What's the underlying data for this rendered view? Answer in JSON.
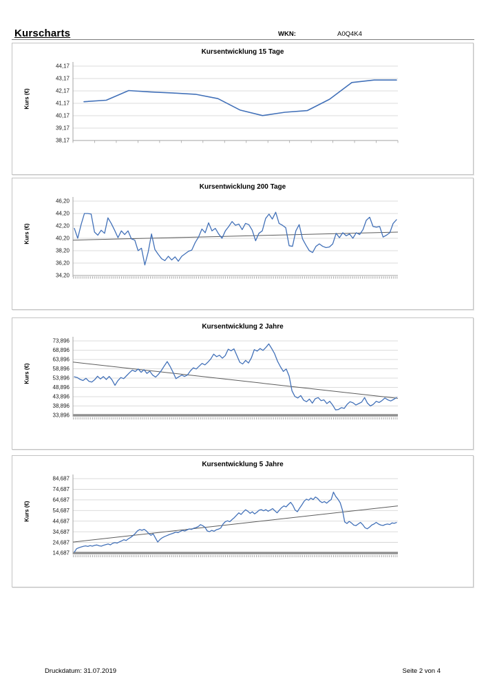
{
  "page": {
    "title": "Kurscharts",
    "wkn_label": "WKN:",
    "wkn_value": "A0Q4K4",
    "footer_left": "Druckdatum: 31.07.2019",
    "footer_right": "Seite 2 von 4"
  },
  "colors": {
    "series": "#4170b8",
    "trend": "#5a5a5a",
    "grid": "#cfcfcf",
    "axis": "#a3a3a3",
    "thick_baseline": "#8f8f8f",
    "tick_text": "#1a1a1a"
  },
  "chart_data": [
    {
      "type": "line",
      "title": "Kursentwicklung 15 Tage",
      "ylabel": "Kurs (€)",
      "y_ticks": [
        "44,17",
        "43,17",
        "42,17",
        "41,17",
        "40,17",
        "39,17",
        "38,17"
      ],
      "ylim": [
        38.17,
        44.17
      ],
      "grid": true,
      "legend": "none",
      "x_tick_style": "sparse",
      "thick_baseline": false,
      "trend": null,
      "values": [
        41.3,
        41.42,
        42.2,
        42.08,
        42.0,
        41.9,
        41.55,
        40.62,
        40.18,
        40.45,
        40.58,
        41.5,
        42.85,
        43.05,
        43.05
      ]
    },
    {
      "type": "line",
      "title": "Kursentwicklung 200 Tage",
      "ylabel": "Kurs (€)",
      "y_ticks": [
        "46,20",
        "44,20",
        "42,20",
        "40,20",
        "38,20",
        "36,20",
        "34,20"
      ],
      "ylim": [
        34.2,
        46.2
      ],
      "grid": true,
      "legend": "none",
      "x_tick_style": "dense",
      "thick_baseline": false,
      "trend": [
        39.9,
        41.2
      ],
      "values": [
        41.8,
        40.2,
        42.4,
        44.2,
        44.2,
        44.1,
        41.2,
        40.7,
        41.5,
        41.0,
        43.5,
        42.6,
        41.5,
        40.3,
        41.4,
        40.8,
        41.4,
        40.1,
        39.9,
        38.2,
        38.6,
        35.9,
        38.0,
        40.9,
        38.4,
        37.6,
        36.9,
        36.6,
        37.3,
        36.7,
        37.2,
        36.5,
        37.3,
        37.7,
        38.1,
        38.3,
        39.5,
        40.4,
        41.7,
        41.1,
        42.7,
        41.4,
        41.8,
        40.9,
        40.2,
        41.4,
        42.1,
        42.9,
        42.3,
        42.5,
        41.6,
        42.6,
        42.4,
        41.5,
        39.8,
        41.0,
        41.4,
        43.4,
        44.1,
        43.3,
        44.4,
        42.6,
        42.3,
        41.9,
        39.0,
        38.9,
        41.4,
        42.4,
        40.1,
        39.1,
        38.2,
        37.9,
        38.9,
        39.3,
        38.9,
        38.7,
        38.8,
        39.3,
        41.0,
        40.3,
        41.1,
        40.6,
        40.9,
        40.2,
        41.1,
        40.8,
        41.6,
        43.1,
        43.6,
        42.1,
        42.0,
        42.1,
        40.4,
        40.7,
        41.1,
        42.6,
        43.2
      ]
    },
    {
      "type": "line",
      "title": "Kursentwicklung 2 Jahre",
      "ylabel": "Kurs (€)",
      "y_ticks": [
        "73,896",
        "68,896",
        "63,896",
        "58,896",
        "53,896",
        "48,896",
        "43,896",
        "38,896",
        "33,896"
      ],
      "ylim": [
        33.896,
        73.896
      ],
      "grid": true,
      "legend": "none",
      "x_tick_style": "dense",
      "thick_baseline": true,
      "trend": [
        62.5,
        43.0
      ],
      "values": [
        54.6,
        54.2,
        53.2,
        52.6,
        53.8,
        52.2,
        51.8,
        53.0,
        54.9,
        53.4,
        54.7,
        53.1,
        54.8,
        52.9,
        50.0,
        52.5,
        54.2,
        53.6,
        55.2,
        56.8,
        58.2,
        57.4,
        58.8,
        57.0,
        58.4,
        56.4,
        57.6,
        55.5,
        54.4,
        56.0,
        58.0,
        60.5,
        62.8,
        60.2,
        57.0,
        53.6,
        54.6,
        55.5,
        54.8,
        55.6,
        57.8,
        59.4,
        58.8,
        60.3,
        61.8,
        61.0,
        62.4,
        64.2,
        66.8,
        65.4,
        66.2,
        64.6,
        66.0,
        69.4,
        68.6,
        69.6,
        66.0,
        62.4,
        61.5,
        63.4,
        62.0,
        64.8,
        69.2,
        68.4,
        69.8,
        68.8,
        70.4,
        72.3,
        69.8,
        67.0,
        63.0,
        60.0,
        57.5,
        58.8,
        55.0,
        47.0,
        44.0,
        43.2,
        44.5,
        42.0,
        41.2,
        42.6,
        40.4,
        42.8,
        43.4,
        41.8,
        42.2,
        40.2,
        41.4,
        39.4,
        36.8,
        37.0,
        38.0,
        37.6,
        39.8,
        41.2,
        40.6,
        39.4,
        40.2,
        41.0,
        43.4,
        40.4,
        38.9,
        39.8,
        41.4,
        40.8,
        41.8,
        43.2,
        42.2,
        41.6,
        42.4,
        43.4
      ]
    },
    {
      "type": "line",
      "title": "Kursentwicklung 5 Jahre",
      "ylabel": "Kurs (€)",
      "y_ticks": [
        "84,687",
        "74,687",
        "64,687",
        "54,687",
        "44,687",
        "34,687",
        "24,687",
        "14,687"
      ],
      "ylim": [
        14.687,
        84.687
      ],
      "grid": true,
      "legend": "none",
      "x_tick_style": "dense",
      "thick_baseline": true,
      "trend": [
        25.0,
        59.0
      ],
      "values": [
        15.5,
        18.8,
        19.6,
        20.4,
        21.0,
        21.4,
        20.9,
        21.6,
        21.2,
        21.9,
        22.3,
        21.5,
        21.2,
        22.0,
        22.6,
        23.2,
        22.4,
        23.8,
        24.5,
        24.0,
        25.2,
        26.1,
        27.2,
        26.5,
        28.1,
        29.4,
        31.0,
        33.0,
        35.5,
        36.8,
        36.1,
        37.0,
        35.4,
        33.0,
        31.4,
        32.7,
        28.8,
        25.0,
        27.4,
        29.0,
        30.1,
        31.0,
        31.9,
        32.7,
        33.4,
        34.4,
        33.9,
        35.0,
        36.0,
        35.4,
        36.4,
        37.4,
        36.9,
        38.0,
        38.6,
        39.6,
        41.4,
        40.4,
        38.9,
        35.4,
        34.8,
        36.0,
        35.2,
        36.5,
        37.2,
        38.2,
        42.0,
        44.2,
        45.0,
        44.2,
        46.2,
        48.0,
        50.2,
        52.5,
        51.0,
        53.4,
        55.4,
        54.0,
        52.1,
        53.5,
        51.5,
        53.0,
        55.0,
        55.5,
        54.4,
        55.5,
        54.0,
        55.1,
        56.5,
        54.4,
        52.5,
        55.0,
        57.4,
        59.0,
        58.1,
        60.4,
        62.4,
        59.5,
        55.1,
        53.6,
        57.0,
        60.0,
        63.4,
        65.4,
        64.4,
        66.4,
        65.0,
        67.4,
        66.0,
        63.5,
        62.1,
        63.1,
        61.6,
        63.5,
        65.0,
        72.0,
        68.0,
        65.4,
        62.0,
        55.0,
        44.0,
        42.5,
        44.5,
        43.0,
        41.0,
        40.5,
        42.0,
        43.5,
        41.4,
        38.5,
        37.5,
        39.0,
        41.0,
        42.0,
        43.5,
        42.0,
        41.0,
        40.6,
        41.5,
        42.0,
        41.5,
        43.0,
        42.6,
        43.4
      ]
    }
  ]
}
